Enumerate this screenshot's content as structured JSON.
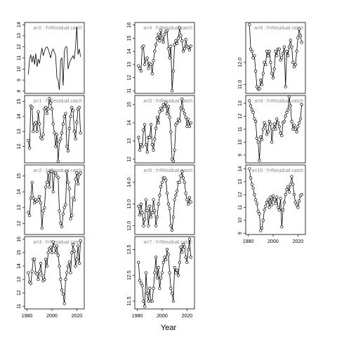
{
  "chart_data": [
    {
      "type": "line",
      "title": "a=0 : f=Residual catch",
      "markers": false,
      "xlim": [
        1978,
        2026
      ],
      "xticks": [
        1980,
        2000,
        2020
      ],
      "ylim": [
        7.8,
        14.2
      ],
      "yticks": [
        8,
        9,
        10,
        11,
        12,
        13,
        14
      ],
      "x": [
        1981,
        1982,
        1983,
        1984,
        1985,
        1986,
        1987,
        1988,
        1989,
        1990,
        1991,
        1992,
        1993,
        1994,
        1995,
        1996,
        1997,
        1998,
        1999,
        2000,
        2001,
        2002,
        2003,
        2004,
        2005,
        2006,
        2007,
        2008,
        2009,
        2010,
        2011,
        2012,
        2013,
        2014,
        2015,
        2016,
        2017,
        2018,
        2019,
        2020,
        2021,
        2022,
        2023
      ],
      "values": [
        9.5,
        10.8,
        11.3,
        10.6,
        11.2,
        10.4,
        11.4,
        10.2,
        10.9,
        10.5,
        11.3,
        11.9,
        11.2,
        11.6,
        11.9,
        12.0,
        11.8,
        11.4,
        11.0,
        11.6,
        11.8,
        11.5,
        11.2,
        9.2,
        9.0,
        8.1,
        10.8,
        11.0,
        8.5,
        11.6,
        12.0,
        12.0,
        10.0,
        10.5,
        10.8,
        11.0,
        11.2,
        10.9,
        12.0,
        13.8,
        11.3,
        11.8,
        11.1
      ]
    },
    {
      "type": "line",
      "title": "a=1 : f=Residual catch",
      "markers": true,
      "xlim": [
        1978,
        2026
      ],
      "xticks": [
        1980,
        2000,
        2020
      ],
      "ylim": [
        10.9,
        15.4
      ],
      "yticks": [
        12,
        13,
        14,
        15
      ],
      "x": [
        1981,
        1982,
        1983,
        1984,
        1985,
        1986,
        1987,
        1988,
        1989,
        1990,
        1991,
        1992,
        1993,
        1994,
        1995,
        1996,
        1997,
        1998,
        1999,
        2000,
        2001,
        2002,
        2003,
        2004,
        2005,
        2006,
        2007,
        2008,
        2009,
        2010,
        2011,
        2012,
        2013,
        2014,
        2015,
        2016,
        2017,
        2018,
        2019,
        2020,
        2021,
        2022,
        2023
      ],
      "values": [
        12.4,
        11.9,
        14.7,
        14.6,
        13.0,
        13.5,
        13.6,
        13.0,
        14.3,
        13.5,
        12.6,
        12.5,
        12.8,
        14.5,
        14.6,
        14.2,
        14.5,
        15.2,
        14.9,
        14.5,
        13.5,
        12.9,
        12.0,
        12.8,
        11.0,
        12.3,
        12.5,
        12.9,
        13.5,
        14.0,
        14.2,
        12.0,
        11.7,
        13.2,
        14.0,
        14.6,
        14.4,
        13.0,
        12.5,
        13.6,
        14.5,
        14.6,
        12.9
      ]
    },
    {
      "type": "line",
      "title": "a=2 : f=Residual catch",
      "markers": true,
      "xlim": [
        1978,
        2026
      ],
      "xticks": [
        1980,
        2000,
        2020
      ],
      "ylim": [
        11.3,
        15.7
      ],
      "yticks": [
        12,
        13,
        14,
        15
      ],
      "x": [
        1981,
        1982,
        1983,
        1984,
        1985,
        1986,
        1987,
        1988,
        1989,
        1990,
        1991,
        1992,
        1993,
        1994,
        1995,
        1996,
        1997,
        1998,
        1999,
        2000,
        2001,
        2002,
        2003,
        2004,
        2005,
        2006,
        2007,
        2008,
        2009,
        2010,
        2011,
        2012,
        2013,
        2014,
        2015,
        2016,
        2017,
        2018,
        2019,
        2020,
        2021,
        2022,
        2023
      ],
      "values": [
        12.7,
        12.5,
        13.6,
        14.6,
        13.6,
        13.3,
        13.5,
        13.4,
        13.5,
        13.7,
        13.3,
        11.7,
        12.8,
        13.0,
        14.3,
        14.6,
        15.2,
        14.3,
        15.3,
        15.3,
        14.0,
        15.2,
        15.2,
        15.0,
        14.9,
        12.8,
        12.0,
        11.8,
        12.6,
        13.0,
        13.2,
        15.3,
        14.6,
        14.2,
        12.3,
        12.5,
        13.6,
        13.5,
        14.8,
        15.2,
        14.5,
        15.1,
        15.2
      ]
    },
    {
      "type": "line",
      "title": "a=3 : f=Residual catch",
      "markers": true,
      "xlim": [
        1978,
        2026
      ],
      "xticks": [
        1980,
        2000,
        2020
      ],
      "ylim": [
        10.8,
        16.2
      ],
      "yticks": [
        11,
        12,
        13,
        14,
        15,
        16
      ],
      "x": [
        1981,
        1982,
        1983,
        1984,
        1985,
        1986,
        1987,
        1988,
        1989,
        1990,
        1991,
        1992,
        1993,
        1994,
        1995,
        1996,
        1997,
        1998,
        1999,
        2000,
        2001,
        2002,
        2003,
        2004,
        2005,
        2006,
        2007,
        2008,
        2009,
        2010,
        2011,
        2012,
        2013,
        2014,
        2015,
        2016,
        2017,
        2018,
        2019,
        2020,
        2021,
        2022,
        2023
      ],
      "values": [
        13.5,
        12.8,
        12.7,
        13.6,
        14.5,
        14.5,
        13.5,
        13.4,
        13.0,
        13.6,
        14.2,
        13.3,
        12.9,
        13.0,
        14.5,
        14.0,
        15.0,
        15.3,
        15.4,
        15.0,
        15.8,
        15.5,
        15.0,
        15.5,
        14.8,
        14.0,
        13.0,
        12.2,
        11.9,
        11.2,
        13.0,
        13.5,
        14.0,
        14.3,
        13.5,
        15.0,
        15.6,
        15.1,
        14.0,
        14.5,
        15.5,
        14.2,
        15.9
      ]
    },
    {
      "type": "line",
      "title": "a=4 : f=Residual catch",
      "markers": true,
      "xlim": [
        1978,
        2026
      ],
      "xticks": [
        1980,
        2000,
        2020
      ],
      "ylim": [
        10.8,
        16.2
      ],
      "yticks": [
        11,
        12,
        13,
        14,
        15,
        16
      ],
      "x": [
        1981,
        1982,
        1983,
        1984,
        1985,
        1986,
        1987,
        1988,
        1989,
        1990,
        1991,
        1992,
        1993,
        1994,
        1995,
        1996,
        1997,
        1998,
        1999,
        2000,
        2001,
        2002,
        2003,
        2004,
        2005,
        2006,
        2007,
        2008,
        2009,
        2010,
        2011,
        2012,
        2013,
        2014,
        2015,
        2016,
        2017,
        2018,
        2019,
        2020,
        2021,
        2022,
        2023
      ],
      "values": [
        12.9,
        12.7,
        12.5,
        14.3,
        14.4,
        13.0,
        13.4,
        13.5,
        12.7,
        13.1,
        13.0,
        12.3,
        13.3,
        14.0,
        14.5,
        15.0,
        15.3,
        14.8,
        15.6,
        15.0,
        14.7,
        15.3,
        15.5,
        15.6,
        14.2,
        13.5,
        14.4,
        11.0,
        12.5,
        14.5,
        14.8,
        14.6,
        15.0,
        15.8,
        15.2,
        14.8,
        14.0,
        14.2,
        14.9,
        14.4,
        14.3,
        14.1,
        14.4
      ]
    },
    {
      "type": "line",
      "title": "a=5 : f=Residual catch",
      "markers": true,
      "xlim": [
        1978,
        2026
      ],
      "xticks": [
        1980,
        2000,
        2020
      ],
      "ylim": [
        11.8,
        15.5
      ],
      "yticks": [
        12,
        13,
        14,
        15
      ],
      "x": [
        1981,
        1982,
        1983,
        1984,
        1985,
        1986,
        1987,
        1988,
        1989,
        1990,
        1991,
        1992,
        1993,
        1994,
        1995,
        1996,
        1997,
        1998,
        1999,
        2000,
        2001,
        2002,
        2003,
        2004,
        2005,
        2006,
        2007,
        2008,
        2009,
        2010,
        2011,
        2012,
        2013,
        2014,
        2015,
        2016,
        2017,
        2018,
        2019,
        2020,
        2021,
        2022,
        2023
      ],
      "values": [
        13.2,
        12.5,
        12.8,
        12.7,
        13.6,
        13.9,
        12.8,
        12.4,
        13.2,
        13.2,
        13.9,
        12.8,
        12.5,
        13.1,
        13.7,
        14.3,
        14.0,
        14.6,
        14.8,
        14.7,
        15.0,
        14.9,
        15.1,
        14.5,
        14.9,
        14.3,
        13.5,
        12.0,
        11.9,
        12.5,
        13.9,
        14.0,
        14.2,
        14.1,
        14.8,
        15.3,
        14.7,
        14.5,
        14.3,
        13.8,
        14.2,
        13.8,
        14.0
      ]
    },
    {
      "type": "line",
      "title": "a=6 : f=Residual catch",
      "markers": true,
      "xlim": [
        1978,
        2026
      ],
      "xticks": [
        1980,
        2000,
        2020
      ],
      "ylim": [
        11.6,
        14.8
      ],
      "yticks": [
        {
          "value": 12,
          "label": "12.0"
        },
        {
          "value": 13,
          "label": "13.0"
        },
        {
          "value": 14,
          "label": "14.0"
        }
      ],
      "x": [
        1981,
        1982,
        1983,
        1984,
        1985,
        1986,
        1987,
        1988,
        1989,
        1990,
        1991,
        1992,
        1993,
        1994,
        1995,
        1996,
        1997,
        1998,
        1999,
        2000,
        2001,
        2002,
        2003,
        2004,
        2005,
        2006,
        2007,
        2008,
        2009,
        2010,
        2011,
        2012,
        2013,
        2014,
        2015,
        2016,
        2017,
        2018,
        2019,
        2020,
        2021,
        2022,
        2023
      ],
      "values": [
        12.9,
        12.5,
        13.0,
        12.6,
        12.0,
        12.3,
        13.2,
        12.7,
        12.0,
        12.9,
        12.4,
        12.6,
        13.2,
        12.7,
        12.0,
        12.4,
        13.0,
        13.4,
        13.8,
        14.0,
        14.2,
        14.2,
        14.1,
        13.5,
        13.0,
        12.8,
        12.0,
        11.8,
        12.4,
        13.2,
        13.4,
        13.6,
        14.0,
        14.0,
        14.3,
        14.5,
        14.2,
        14.0,
        13.5,
        13.2,
        13.0,
        13.3,
        13.1
      ]
    },
    {
      "type": "line",
      "title": "a=7 : f=Residual catch",
      "markers": true,
      "xlim": [
        1978,
        2026
      ],
      "xticks": [
        1980,
        2000,
        2020
      ],
      "ylim": [
        11.2,
        14.0
      ],
      "yticks": [
        11.5,
        12.5,
        13.5
      ],
      "x": [
        1981,
        1982,
        1983,
        1984,
        1985,
        1986,
        1987,
        1988,
        1989,
        1990,
        1991,
        1992,
        1993,
        1994,
        1995,
        1996,
        1997,
        1998,
        1999,
        2000,
        2001,
        2002,
        2003,
        2004,
        2005,
        2006,
        2007,
        2008,
        2009,
        2010,
        2011,
        2012,
        2013,
        2014,
        2015,
        2016,
        2017,
        2018,
        2019,
        2020,
        2021,
        2022,
        2023
      ],
      "values": [
        13.0,
        12.3,
        12.2,
        12.1,
        11.5,
        11.3,
        12.6,
        11.8,
        11.5,
        12.0,
        11.5,
        11.5,
        12.0,
        12.6,
        13.2,
        12.4,
        12.8,
        12.0,
        12.4,
        12.6,
        13.0,
        13.2,
        13.1,
        13.5,
        13.3,
        12.6,
        12.0,
        11.8,
        11.5,
        12.8,
        12.6,
        12.7,
        12.5,
        13.0,
        13.6,
        13.4,
        13.7,
        13.6,
        13.2,
        13.0,
        13.5,
        13.9,
        13.2
      ]
    },
    {
      "type": "line",
      "title": "a=8 : f=Residual catch",
      "markers": true,
      "xlim": [
        1978,
        2026
      ],
      "xticks": [
        1980,
        2000,
        2020
      ],
      "ylim": [
        10.6,
        13.8
      ],
      "yticks": [
        {
          "value": 11,
          "label": "11.0"
        },
        {
          "value": 12,
          "label": "12.0"
        }
      ],
      "x": [
        1981,
        1982,
        1983,
        1984,
        1985,
        1986,
        1987,
        1988,
        1989,
        1990,
        1991,
        1992,
        1993,
        1994,
        1995,
        1996,
        1997,
        1998,
        1999,
        2000,
        2001,
        2002,
        2003,
        2004,
        2005,
        2006,
        2007,
        2008,
        2009,
        2010,
        2011,
        2012,
        2013,
        2014,
        2015,
        2016,
        2017,
        2018,
        2019,
        2020,
        2021,
        2022,
        2023
      ],
      "values": [
        13.7,
        12.6,
        12.5,
        12.2,
        12.3,
        11.6,
        10.9,
        10.8,
        10.8,
        11.2,
        11.0,
        11.5,
        12.0,
        11.9,
        12.5,
        12.3,
        12.5,
        12.0,
        11.5,
        11.3,
        11.7,
        12.5,
        12.3,
        12.6,
        12.6,
        12.1,
        12.2,
        12.4,
        12.7,
        10.9,
        12.5,
        12.3,
        12.7,
        13.0,
        12.7,
        12.0,
        11.8,
        11.9,
        12.5,
        13.1,
        13.5,
        13.2,
        12.9
      ]
    },
    {
      "type": "line",
      "title": "a=9 : f=Residual catch",
      "markers": true,
      "xlim": [
        1978,
        2026
      ],
      "xticks": [
        1980,
        2000,
        2020
      ],
      "ylim": [
        8.4,
        13.6
      ],
      "yticks": [
        9,
        10,
        11,
        12,
        13
      ],
      "x": [
        1981,
        1982,
        1983,
        1984,
        1985,
        1986,
        1987,
        1988,
        1989,
        1990,
        1991,
        1992,
        1993,
        1994,
        1995,
        1996,
        1997,
        1998,
        1999,
        2000,
        2001,
        2002,
        2003,
        2004,
        2005,
        2006,
        2007,
        2008,
        2009,
        2010,
        2011,
        2012,
        2013,
        2014,
        2015,
        2016,
        2017,
        2018,
        2019,
        2020,
        2021,
        2022,
        2023
      ],
      "values": [
        13.2,
        12.8,
        12.5,
        12.3,
        11.8,
        11.6,
        10.3,
        10.0,
        8.6,
        10.4,
        10.2,
        11.0,
        11.5,
        11.3,
        10.6,
        10.8,
        11.6,
        11.4,
        10.0,
        11.0,
        11.4,
        11.0,
        11.8,
        11.5,
        11.2,
        10.7,
        10.5,
        11.5,
        11.6,
        12.0,
        12.3,
        12.5,
        13.5,
        12.8,
        11.6,
        11.0,
        11.3,
        11.0,
        10.8,
        11.2,
        11.5,
        11.8,
        12.9
      ]
    },
    {
      "type": "line",
      "title": "a=10 : f=Residual catch",
      "markers": true,
      "xlim": [
        1978,
        2026
      ],
      "xticks": [
        1980,
        2000,
        2020
      ],
      "ylim": [
        8.9,
        14.3
      ],
      "yticks": [
        9,
        10,
        11,
        12,
        13,
        14
      ],
      "x": [
        1981,
        1982,
        1983,
        1984,
        1985,
        1986,
        1987,
        1988,
        1989,
        1990,
        1991,
        1992,
        1993,
        1994,
        1995,
        1996,
        1997,
        1998,
        1999,
        2000,
        2001,
        2002,
        2003,
        2004,
        2005,
        2006,
        2007,
        2008,
        2009,
        2010,
        2011,
        2012,
        2013,
        2014,
        2015,
        2016,
        2017,
        2018,
        2019,
        2020,
        2021,
        2022,
        2023
      ],
      "values": [
        14.0,
        13.3,
        12.8,
        12.5,
        12.0,
        11.6,
        11.3,
        10.7,
        10.5,
        9.2,
        9.4,
        10.0,
        10.8,
        11.1,
        11.4,
        11.6,
        11.0,
        11.8,
        11.2,
        11.9,
        11.6,
        11.3,
        11.8,
        11.0,
        10.8,
        11.7,
        9.5,
        10.8,
        11.4,
        12.0,
        12.4,
        12.6,
        12.2,
        12.8,
        13.4,
        12.8,
        12.0,
        11.4,
        11.2,
        11.0,
        11.5,
        11.9,
        12.0
      ]
    }
  ],
  "xlabel": "Year"
}
